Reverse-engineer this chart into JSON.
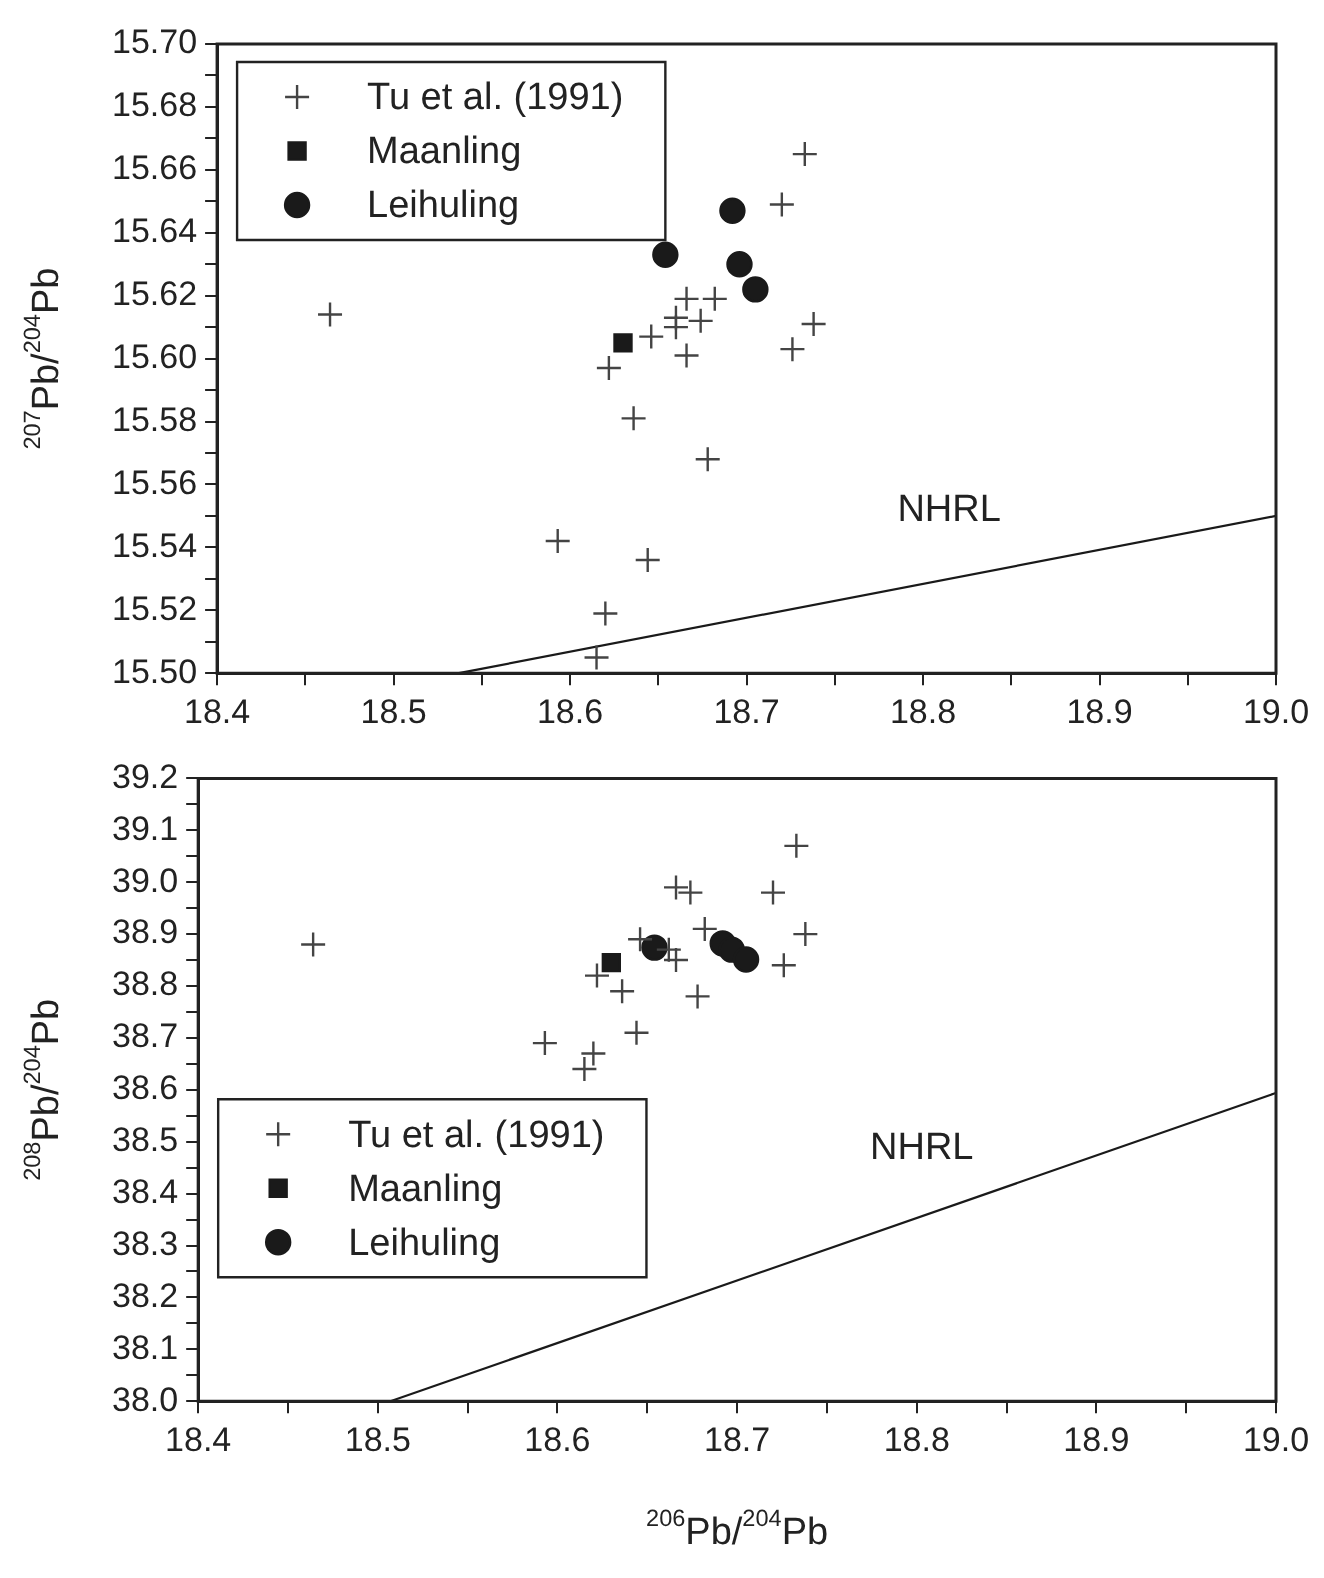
{
  "chart_data": [
    {
      "type": "scatter",
      "ylabel": "$^{207}$Pb/$^{204}$Pb",
      "grid": false,
      "legend": "top left",
      "xlim": [
        18.4,
        19.0
      ],
      "ylim": [
        15.5,
        15.7
      ],
      "xticks": [
        18.4,
        {
          "value": 18.45,
          "label": null
        },
        18.5,
        {
          "value": 18.55,
          "label": null
        },
        18.6,
        {
          "value": 18.65,
          "label": null
        },
        18.7,
        {
          "value": 18.75,
          "label": null
        },
        18.8,
        {
          "value": 18.85,
          "label": null
        },
        18.9,
        {
          "value": 18.95,
          "label": null
        },
        {
          "value": 19.0,
          "label": "19.0"
        }
      ],
      "yticks": [
        {
          "value": 15.5,
          "label": "15.50"
        },
        {
          "value": 15.51,
          "label": null
        },
        {
          "value": 15.52,
          "label": "15.52"
        },
        {
          "value": 15.53,
          "label": null
        },
        {
          "value": 15.54,
          "label": "15.54"
        },
        {
          "value": 15.55,
          "label": null
        },
        {
          "value": 15.56,
          "label": "15.56"
        },
        {
          "value": 15.57,
          "label": null
        },
        {
          "value": 15.58,
          "label": "15.58"
        },
        {
          "value": 15.59,
          "label": null
        },
        {
          "value": 15.6,
          "label": "15.60"
        },
        {
          "value": 15.61,
          "label": null
        },
        {
          "value": 15.62,
          "label": "15.62"
        },
        {
          "value": 15.63,
          "label": null
        },
        {
          "value": 15.64,
          "label": "15.64"
        },
        {
          "value": 15.65,
          "label": null
        },
        {
          "value": 15.66,
          "label": "15.66"
        },
        {
          "value": 15.67,
          "label": null
        },
        {
          "value": 15.68,
          "label": "15.68"
        },
        {
          "value": 15.69,
          "label": null
        },
        {
          "value": 15.7,
          "label": "15.70"
        }
      ],
      "series": [
        {
          "name": "Tu et al. (1991)",
          "marker": "cross",
          "color": "#444444",
          "x": [
            18.464,
            18.733,
            18.72,
            18.666,
            18.682,
            18.66,
            18.66,
            18.674,
            18.646,
            18.666,
            18.738,
            18.726,
            18.622,
            18.636,
            18.678,
            18.593,
            18.644,
            18.62,
            18.615
          ],
          "values": [
            15.614,
            15.665,
            15.649,
            15.619,
            15.619,
            15.613,
            15.61,
            15.612,
            15.607,
            15.601,
            15.611,
            15.603,
            15.597,
            15.581,
            15.568,
            15.542,
            15.536,
            15.519,
            15.505
          ]
        },
        {
          "name": "Maanling",
          "marker": "square",
          "color": "#1a1a1a",
          "x": [
            18.63
          ],
          "values": [
            15.605
          ]
        },
        {
          "name": "Leihuling",
          "marker": "circle",
          "color": "#1a1a1a",
          "x": [
            18.654,
            18.692,
            18.696,
            18.705
          ],
          "values": [
            15.633,
            15.647,
            15.63,
            15.622
          ]
        },
        {
          "name": "NHRL",
          "type": "line",
          "marker": "none",
          "line_style": "solid",
          "color": "#1a1a1a",
          "x": [
            18.537,
            19.0
          ],
          "values": [
            15.5,
            15.55
          ]
        }
      ]
    },
    {
      "type": "scatter",
      "xlabel": "$^{206}$Pb/$^{204}$Pb",
      "ylabel": "$^{208}$Pb/$^{204}$Pb",
      "grid": false,
      "legend": "bottom left",
      "xlim": [
        18.4,
        19.0
      ],
      "ylim": [
        38.0,
        39.2
      ],
      "xticks": [
        18.4,
        {
          "value": 18.45,
          "label": null
        },
        18.5,
        {
          "value": 18.55,
          "label": null
        },
        18.6,
        {
          "value": 18.65,
          "label": null
        },
        18.7,
        {
          "value": 18.75,
          "label": null
        },
        18.8,
        {
          "value": 18.85,
          "label": null
        },
        18.9,
        {
          "value": 18.95,
          "label": null
        },
        {
          "value": 19.0,
          "label": "19.0"
        }
      ],
      "yticks": [
        {
          "value": 38.0,
          "label": "38.0"
        },
        {
          "value": 38.05,
          "label": null
        },
        38.1,
        {
          "value": 38.15,
          "label": null
        },
        38.2,
        {
          "value": 38.25,
          "label": null
        },
        38.3,
        {
          "value": 38.35,
          "label": null
        },
        38.4,
        {
          "value": 38.45,
          "label": null
        },
        38.5,
        {
          "value": 38.55,
          "label": null
        },
        38.6,
        {
          "value": 38.65,
          "label": null
        },
        38.7,
        {
          "value": 38.75,
          "label": null
        },
        38.8,
        {
          "value": 38.85,
          "label": null
        },
        38.9,
        {
          "value": 38.95,
          "label": null
        },
        {
          "value": 39.0,
          "label": "39.0"
        },
        {
          "value": 39.05,
          "label": null
        },
        39.1,
        {
          "value": 39.15,
          "label": null
        },
        39.2
      ],
      "series": [
        {
          "name": "Tu et al. (1991)",
          "marker": "cross",
          "color": "#444444",
          "x": [
            18.464,
            18.733,
            18.72,
            18.666,
            18.674,
            18.682,
            18.646,
            18.662,
            18.666,
            18.738,
            18.726,
            18.622,
            18.636,
            18.678,
            18.593,
            18.644,
            18.62,
            18.615
          ],
          "values": [
            38.88,
            39.07,
            38.98,
            38.99,
            38.98,
            38.91,
            38.89,
            38.87,
            38.85,
            38.9,
            38.84,
            38.82,
            38.79,
            38.78,
            38.69,
            38.71,
            38.67,
            38.64
          ]
        },
        {
          "name": "Maanling",
          "marker": "square",
          "color": "#1a1a1a",
          "x": [
            18.63
          ],
          "values": [
            38.845
          ]
        },
        {
          "name": "Leihuling",
          "marker": "circle",
          "color": "#1a1a1a",
          "x": [
            18.654,
            18.692,
            18.697,
            18.705
          ],
          "values": [
            38.874,
            38.882,
            38.87,
            38.851
          ]
        },
        {
          "name": "NHRL",
          "type": "line",
          "marker": "none",
          "line_style": "solid",
          "color": "#1a1a1a",
          "x": [
            18.507,
            19.0
          ],
          "values": [
            38.0,
            38.594
          ]
        }
      ]
    }
  ]
}
